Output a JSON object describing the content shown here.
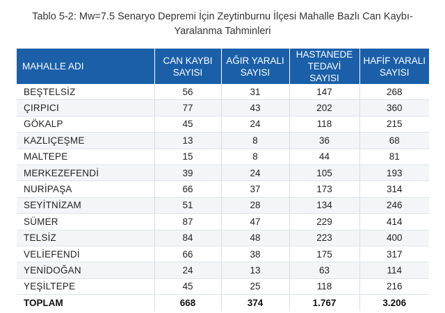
{
  "caption": {
    "line1": "Tablo 5-2: Mw=7.5 Senaryo Depremi İçin Zeytinburnu İlçesi Mahalle Bazlı Can Kaybı-",
    "line2": "Yaralanma Tahminleri"
  },
  "headers": [
    {
      "line1": "MAHALLE ADI",
      "line2": ""
    },
    {
      "line1": "CAN KAYBI",
      "line2": "SAYISI"
    },
    {
      "line1": "AĞIR YARALI",
      "line2": "SAYISI"
    },
    {
      "line1": "HASTANEDE",
      "line2": "TEDAVİ SAYISI"
    },
    {
      "line1": "HAFİF YARALI",
      "line2": "SAYISI"
    }
  ],
  "rows": [
    {
      "name": "BEŞTELSİZ",
      "deaths": "56",
      "severe": "31",
      "hospital": "147",
      "light": "268"
    },
    {
      "name": "ÇIRPICI",
      "deaths": "77",
      "severe": "43",
      "hospital": "202",
      "light": "360"
    },
    {
      "name": "GÖKALP",
      "deaths": "45",
      "severe": "24",
      "hospital": "118",
      "light": "215"
    },
    {
      "name": "KAZLIÇEŞME",
      "deaths": "13",
      "severe": "8",
      "hospital": "36",
      "light": "68"
    },
    {
      "name": "MALTEPE",
      "deaths": "15",
      "severe": "8",
      "hospital": "44",
      "light": "81"
    },
    {
      "name": "MERKEZEFENDİ",
      "deaths": "39",
      "severe": "24",
      "hospital": "105",
      "light": "193"
    },
    {
      "name": "NURİPAŞA",
      "deaths": "66",
      "severe": "37",
      "hospital": "173",
      "light": "314"
    },
    {
      "name": "SEYİTNİZAM",
      "deaths": "51",
      "severe": "28",
      "hospital": "134",
      "light": "246"
    },
    {
      "name": "SÜMER",
      "deaths": "87",
      "severe": "47",
      "hospital": "229",
      "light": "414"
    },
    {
      "name": "TELSİZ",
      "deaths": "84",
      "severe": "48",
      "hospital": "223",
      "light": "400"
    },
    {
      "name": "VELİEFENDİ",
      "deaths": "66",
      "severe": "38",
      "hospital": "175",
      "light": "317"
    },
    {
      "name": "YENİDOĞAN",
      "deaths": "24",
      "severe": "13",
      "hospital": "63",
      "light": "114"
    },
    {
      "name": "YEŞİLTEPE",
      "deaths": "45",
      "severe": "25",
      "hospital": "118",
      "light": "216"
    }
  ],
  "total": {
    "name": "TOPLAM",
    "deaths": "668",
    "severe": "374",
    "hospital": "1.767",
    "light": "3.206"
  },
  "colors": {
    "header_bg": "#1a5fa8",
    "header_text": "#ffffff"
  }
}
